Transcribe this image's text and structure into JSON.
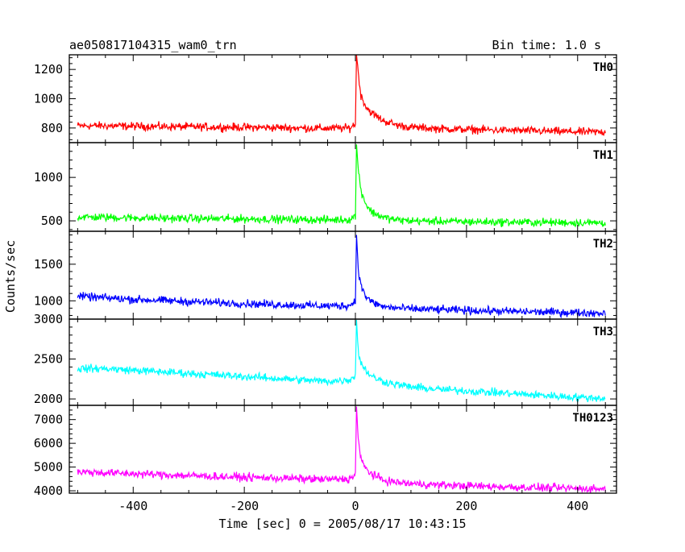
{
  "chart_data": {
    "type": "line",
    "title": "ae050817104315_wam0_trn",
    "bin_time": "Bin time: 1.0 s",
    "xlabel": "Time [sec] 0 = 2005/08/17 10:43:15",
    "ylabel": "Counts/sec",
    "xlim": [
      -515,
      470
    ],
    "xticks": [
      -400,
      -200,
      0,
      200,
      400
    ],
    "grid": false,
    "panels": [
      {
        "name": "TH0",
        "color": "#ff0000",
        "ylim": [
          700,
          1300
        ],
        "yticks": [
          800,
          1000,
          1200
        ],
        "series": {
          "x": [
            -500,
            -450,
            -400,
            -350,
            -300,
            -250,
            -200,
            -150,
            -100,
            -50,
            -10,
            0,
            2,
            5,
            10,
            20,
            30,
            50,
            75,
            100,
            150,
            200,
            250,
            300,
            350,
            400,
            450
          ],
          "y": [
            815,
            815,
            812,
            810,
            808,
            806,
            805,
            803,
            800,
            798,
            800,
            830,
            1300,
            1180,
            1020,
            940,
            900,
            850,
            820,
            805,
            795,
            790,
            786,
            782,
            778,
            774,
            772
          ]
        }
      },
      {
        "name": "TH1",
        "color": "#00ff00",
        "ylim": [
          380,
          1400
        ],
        "yticks": [
          500,
          1000
        ],
        "series": {
          "x": [
            -500,
            -450,
            -400,
            -350,
            -300,
            -250,
            -200,
            -150,
            -100,
            -50,
            -10,
            0,
            2,
            5,
            10,
            20,
            30,
            50,
            75,
            100,
            150,
            200,
            250,
            300,
            350,
            400,
            450
          ],
          "y": [
            545,
            540,
            535,
            530,
            528,
            525,
            522,
            520,
            515,
            512,
            515,
            560,
            1380,
            1100,
            850,
            680,
            600,
            540,
            510,
            500,
            495,
            490,
            487,
            485,
            482,
            480,
            478
          ]
        }
      },
      {
        "name": "TH2",
        "color": "#0000ff",
        "ylim": [
          750,
          1950
        ],
        "yticks": [
          1000,
          1500
        ],
        "series": {
          "x": [
            -500,
            -450,
            -400,
            -350,
            -300,
            -250,
            -200,
            -150,
            -100,
            -50,
            -10,
            0,
            2,
            5,
            10,
            20,
            30,
            50,
            75,
            100,
            150,
            200,
            250,
            300,
            350,
            400,
            450
          ],
          "y": [
            1060,
            1040,
            1020,
            1005,
            990,
            975,
            962,
            950,
            940,
            930,
            935,
            1000,
            1900,
            1450,
            1200,
            1050,
            980,
            920,
            900,
            890,
            880,
            870,
            860,
            852,
            845,
            838,
            832
          ]
        }
      },
      {
        "name": "TH3",
        "color": "#00ffff",
        "ylim": [
          1920,
          3000
        ],
        "yticks": [
          2000,
          2500,
          3000
        ],
        "series": {
          "x": [
            -500,
            -450,
            -400,
            -350,
            -300,
            -250,
            -200,
            -150,
            -100,
            -50,
            -10,
            0,
            2,
            5,
            10,
            20,
            30,
            50,
            75,
            100,
            150,
            200,
            250,
            300,
            350,
            400,
            450
          ],
          "y": [
            2380,
            2380,
            2360,
            2340,
            2320,
            2300,
            2280,
            2260,
            2240,
            2220,
            2240,
            2300,
            2990,
            2600,
            2450,
            2350,
            2280,
            2220,
            2180,
            2150,
            2120,
            2100,
            2080,
            2060,
            2040,
            2020,
            2010
          ]
        }
      },
      {
        "name": "TH0123",
        "color": "#ff00ff",
        "ylim": [
          3900,
          7600
        ],
        "yticks": [
          4000,
          5000,
          6000,
          7000
        ],
        "series": {
          "x": [
            -500,
            -450,
            -400,
            -350,
            -300,
            -250,
            -200,
            -150,
            -100,
            -50,
            -10,
            0,
            2,
            5,
            10,
            20,
            30,
            50,
            75,
            100,
            150,
            200,
            250,
            300,
            350,
            400,
            450
          ],
          "y": [
            4800,
            4760,
            4720,
            4680,
            4640,
            4600,
            4570,
            4540,
            4510,
            4480,
            4500,
            4700,
            7550,
            6200,
            5300,
            4900,
            4700,
            4450,
            4350,
            4300,
            4250,
            4210,
            4180,
            4150,
            4120,
            4100,
            4080
          ]
        }
      }
    ]
  }
}
